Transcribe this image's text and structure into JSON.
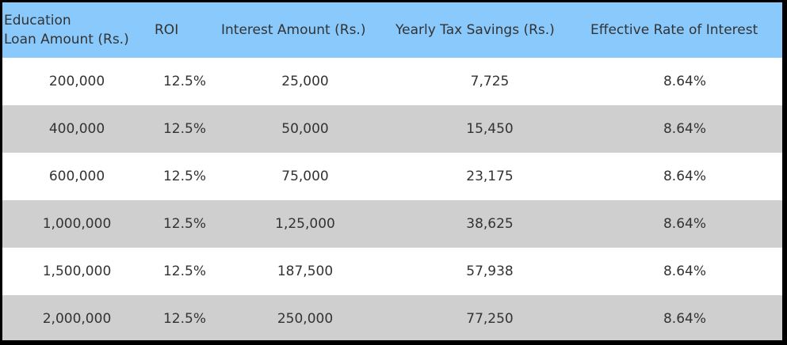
{
  "table": {
    "headers": [
      "Education Loan Amount (Rs.)",
      "ROI",
      "Interest Amount (Rs.)",
      "Yearly Tax Savings (Rs.)",
      "Effective Rate of Interest"
    ],
    "header_line1": "Education",
    "header_line2": "Loan Amount (Rs.)",
    "rows": [
      [
        "200,000",
        "12.5%",
        "25,000",
        "7,725",
        "8.64%"
      ],
      [
        "400,000",
        "12.5%",
        "50,000",
        "15,450",
        "8.64%"
      ],
      [
        "600,000",
        "12.5%",
        "75,000",
        "23,175",
        "8.64%"
      ],
      [
        "1,000,000",
        "12.5%",
        "1,25,000",
        "38,625",
        "8.64%"
      ],
      [
        "1,500,000",
        "12.5%",
        "187,500",
        "57,938",
        "8.64%"
      ],
      [
        "2,000,000",
        "12.5%",
        "250,000",
        "77,250",
        "8.64%"
      ]
    ]
  },
  "colors": {
    "header_bg": "#8ac9fb",
    "alt_row_bg": "#cfcfcf",
    "border": "#000000"
  }
}
